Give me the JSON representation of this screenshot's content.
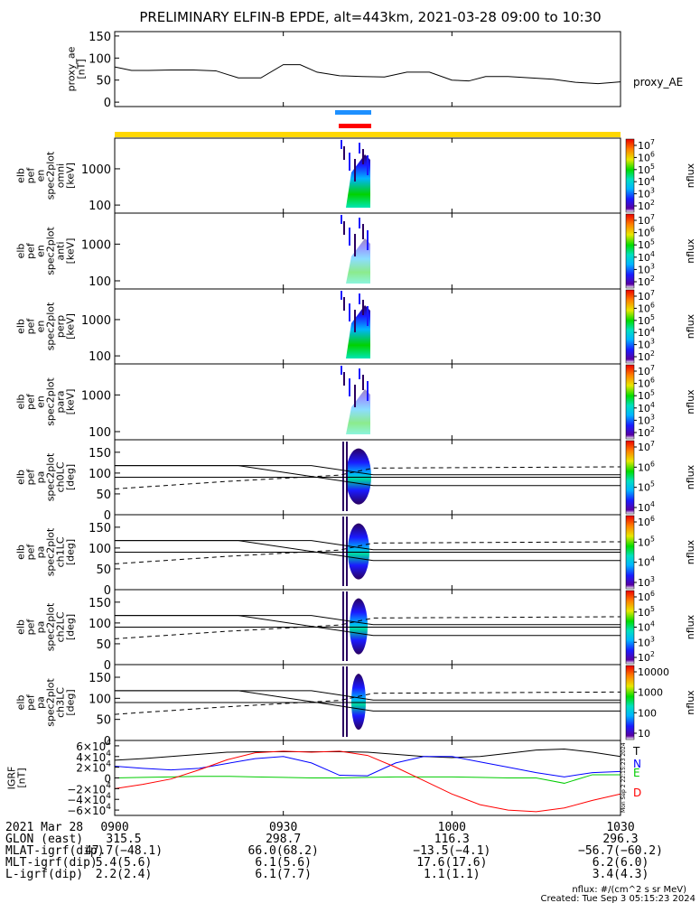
{
  "title": "PRELIMINARY ELFIN-B EPDE, alt=443km, 2021-03-28 09:00 to 10:30",
  "footer": {
    "units_note": "nflux: #/(cm^2 s sr MeV)",
    "created": "Created: Tue Sep  3 05:15:23 2024",
    "side_stamp": "Mon Sep  2 22:15:23 2024"
  },
  "chart_data": [
    {
      "type": "line",
      "panel": "proxy_ae",
      "ylabel_lines": [
        "proxy_ae",
        "[nT]"
      ],
      "series_label": "proxy_AE",
      "ylim": [
        -10,
        160
      ],
      "yticks": [
        "0",
        "50",
        "100",
        "150"
      ],
      "tick_values": [
        0,
        50,
        100,
        150
      ],
      "x_minutes": [
        0,
        3,
        6,
        10,
        14,
        18,
        22,
        26,
        30,
        33,
        36,
        40,
        44,
        48,
        52,
        56,
        60,
        63,
        66,
        70,
        74,
        78,
        82,
        86,
        90
      ],
      "values": [
        80,
        72,
        72,
        73,
        73,
        71,
        55,
        55,
        85,
        85,
        68,
        60,
        58,
        57,
        68,
        68,
        50,
        48,
        58,
        58,
        55,
        52,
        45,
        42,
        46
      ]
    },
    {
      "type": "heatmap",
      "panel": "omni",
      "ylabel_lines": [
        "elb",
        "pef",
        "en",
        "spec2plot",
        "omni",
        "[keV]"
      ],
      "yticks": [
        "100",
        "1000"
      ],
      "tick_values": [
        100,
        1000
      ],
      "ylim": [
        60,
        7000
      ],
      "scale": "log",
      "colorbar": {
        "label": "nflux",
        "ticks": [
          "10^7",
          "10^6",
          "10^5",
          "10^4",
          "10^3",
          "10^2"
        ]
      }
    },
    {
      "type": "heatmap",
      "panel": "anti",
      "ylabel_lines": [
        "elb",
        "pef",
        "en",
        "spec2plot",
        "anti",
        "[keV]"
      ],
      "yticks": [
        "100",
        "1000"
      ],
      "tick_values": [
        100,
        1000
      ],
      "ylim": [
        60,
        7000
      ],
      "scale": "log",
      "colorbar": {
        "label": "nflux",
        "ticks": [
          "10^7",
          "10^6",
          "10^5",
          "10^4",
          "10^3",
          "10^2"
        ]
      }
    },
    {
      "type": "heatmap",
      "panel": "perp",
      "ylabel_lines": [
        "elb",
        "pef",
        "en",
        "spec2plot",
        "perp",
        "[keV]"
      ],
      "yticks": [
        "100",
        "1000"
      ],
      "tick_values": [
        100,
        1000
      ],
      "ylim": [
        60,
        7000
      ],
      "scale": "log",
      "colorbar": {
        "label": "nflux",
        "ticks": [
          "10^7",
          "10^6",
          "10^5",
          "10^4",
          "10^3",
          "10^2"
        ]
      }
    },
    {
      "type": "heatmap",
      "panel": "para",
      "ylabel_lines": [
        "elb",
        "pef",
        "en",
        "spec2plot",
        "para",
        "[keV]"
      ],
      "yticks": [
        "100",
        "1000"
      ],
      "tick_values": [
        100,
        1000
      ],
      "ylim": [
        60,
        7000
      ],
      "scale": "log",
      "colorbar": {
        "label": "nflux",
        "ticks": [
          "10^7",
          "10^6",
          "10^5",
          "10^4",
          "10^3",
          "10^2"
        ]
      }
    },
    {
      "type": "heatmap",
      "panel": "ch0LC",
      "ylabel_lines": [
        "elb",
        "pef",
        "pa",
        "spec2plot",
        "ch0LC",
        "[deg]"
      ],
      "yticks": [
        "0",
        "50",
        "100",
        "150"
      ],
      "tick_values": [
        0,
        50,
        100,
        150
      ],
      "ylim": [
        0,
        180
      ],
      "colorbar": {
        "label": "nflux",
        "ticks": [
          "10^7",
          "10^6",
          "10^5",
          "10^4"
        ]
      }
    },
    {
      "type": "heatmap",
      "panel": "ch1LC",
      "ylabel_lines": [
        "elb",
        "pef",
        "pa",
        "spec2plot",
        "ch1LC",
        "[deg]"
      ],
      "yticks": [
        "0",
        "50",
        "100",
        "150"
      ],
      "tick_values": [
        0,
        50,
        100,
        150
      ],
      "ylim": [
        0,
        180
      ],
      "colorbar": {
        "label": "nflux",
        "ticks": [
          "10^6",
          "10^5",
          "10^4",
          "10^3"
        ]
      }
    },
    {
      "type": "heatmap",
      "panel": "ch2LC",
      "ylabel_lines": [
        "elb",
        "pef",
        "pa",
        "spec2plot",
        "ch2LC",
        "[deg]"
      ],
      "yticks": [
        "0",
        "50",
        "100",
        "150"
      ],
      "tick_values": [
        0,
        50,
        100,
        150
      ],
      "ylim": [
        0,
        180
      ],
      "colorbar": {
        "label": "nflux",
        "ticks": [
          "10^6",
          "10^5",
          "10^4",
          "10^3",
          "10^2"
        ]
      }
    },
    {
      "type": "heatmap",
      "panel": "ch3LC",
      "ylabel_lines": [
        "elb",
        "pef",
        "pa",
        "spec2plot",
        "ch3LC",
        "[deg]"
      ],
      "yticks": [
        "0",
        "50",
        "100",
        "150"
      ],
      "tick_values": [
        0,
        50,
        100,
        150
      ],
      "ylim": [
        0,
        180
      ],
      "colorbar": {
        "label": "nflux",
        "ticks": [
          "10000",
          "1000",
          "100",
          "10"
        ]
      }
    },
    {
      "type": "line",
      "panel": "IGRF",
      "ylabel_lines": [
        "IGRF",
        "[nT]"
      ],
      "yticks": [
        "6×10^4",
        "4×10^4",
        "2×10^4",
        "0",
        "−2×10^4",
        "−4×10^4",
        "−6×10^4"
      ],
      "tick_values": [
        60000,
        40000,
        20000,
        0,
        -20000,
        -40000,
        -60000
      ],
      "ylim": [
        -70000,
        70000
      ],
      "x_minutes": [
        0,
        5,
        10,
        15,
        20,
        25,
        30,
        35,
        40,
        45,
        50,
        55,
        60,
        65,
        70,
        75,
        80,
        85,
        90
      ],
      "series": [
        {
          "name": "T",
          "color": "#000000",
          "values": [
            33000,
            36000,
            40000,
            44000,
            48000,
            49000,
            49000,
            49000,
            49000,
            48000,
            44000,
            40000,
            38000,
            40000,
            46000,
            52000,
            54000,
            48000,
            40000
          ]
        },
        {
          "name": "N",
          "color": "#0000ff",
          "values": [
            22000,
            18000,
            15000,
            18000,
            27000,
            36000,
            40000,
            28000,
            5000,
            4000,
            28000,
            40000,
            40000,
            30000,
            20000,
            10000,
            2000,
            10000,
            12000
          ]
        },
        {
          "name": "E",
          "color": "#00cc00",
          "values": [
            0,
            1000,
            2000,
            3000,
            3000,
            2000,
            1000,
            0,
            0,
            1000,
            2000,
            2000,
            2000,
            1000,
            0,
            0,
            -10000,
            6000,
            6000
          ]
        },
        {
          "name": "D",
          "color": "#ff0000",
          "values": [
            -20000,
            -12000,
            -2000,
            15000,
            34000,
            47000,
            50000,
            48000,
            50000,
            42000,
            20000,
            -5000,
            -30000,
            -50000,
            -60000,
            -63000,
            -56000,
            -42000,
            -30000
          ]
        }
      ]
    }
  ],
  "orbit_table": {
    "header": [
      "2021 Mar 28",
      "0900",
      "0930",
      "1000",
      "1030"
    ],
    "rows": [
      {
        "label": "GLON (east)",
        "values": [
          "315.5",
          "298.7",
          "116.3",
          "296.3"
        ]
      },
      {
        "label": "MLAT-igrf(dip)",
        "values": [
          "47.7(−48.1)",
          "66.0(68.2)",
          "−13.5(−4.1)",
          "−56.7(−60.2)"
        ]
      },
      {
        "label": "MLT-igrf(dip)",
        "values": [
          "5.4(5.6)",
          "6.1(5.6)",
          "17.6(17.6)",
          "6.2(6.0)"
        ]
      },
      {
        "label": "L-igrf(dip)",
        "values": [
          "2.2(2.4)",
          "6.1(7.7)",
          "1.1(1.1)",
          "3.4(4.3)"
        ]
      }
    ]
  },
  "colors": {
    "yellow_bar": "#ffd700",
    "blue_bar": "#1e90ff",
    "red_bar": "#ff0000"
  }
}
